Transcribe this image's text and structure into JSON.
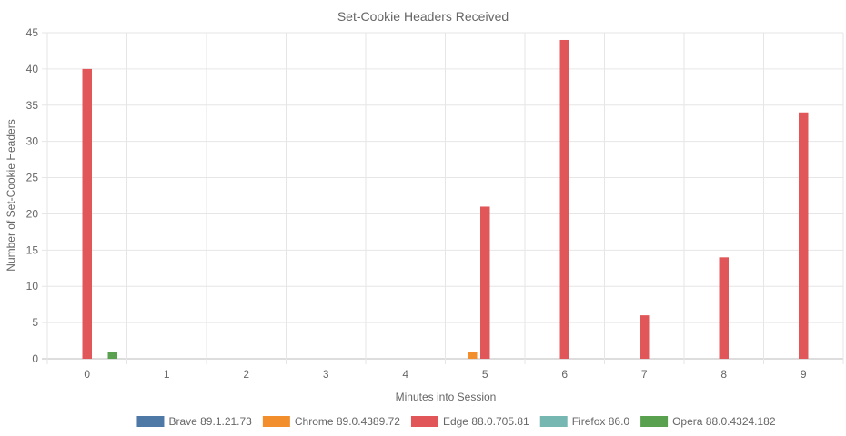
{
  "chart_data": {
    "type": "bar",
    "title": "Set-Cookie Headers Received",
    "xlabel": "Minutes into Session",
    "ylabel": "Number of Set-Cookie Headers",
    "categories": [
      "0",
      "1",
      "2",
      "3",
      "4",
      "5",
      "6",
      "7",
      "8",
      "9"
    ],
    "ylim": [
      0,
      45
    ],
    "yticks": [
      0,
      5,
      10,
      15,
      20,
      25,
      30,
      35,
      40,
      45
    ],
    "grid": true,
    "legend_position": "bottom",
    "series": [
      {
        "name": "Brave 89.1.21.73",
        "color": "#4e79a7",
        "values": [
          0,
          0,
          0,
          0,
          0,
          0,
          0,
          0,
          0,
          0
        ]
      },
      {
        "name": "Chrome 89.0.4389.72",
        "color": "#f28e2b",
        "values": [
          0,
          0,
          0,
          0,
          0,
          1,
          0,
          0,
          0,
          0
        ]
      },
      {
        "name": "Edge 88.0.705.81",
        "color": "#e15759",
        "values": [
          40,
          0,
          0,
          0,
          0,
          21,
          44,
          6,
          14,
          34
        ]
      },
      {
        "name": "Firefox 86.0",
        "color": "#76b7b2",
        "values": [
          0,
          0,
          0,
          0,
          0,
          0,
          0,
          0,
          0,
          0
        ]
      },
      {
        "name": "Opera 88.0.4324.182",
        "color": "#59a14f",
        "values": [
          1,
          0,
          0,
          0,
          0,
          0,
          0,
          0,
          0,
          0
        ]
      }
    ]
  }
}
